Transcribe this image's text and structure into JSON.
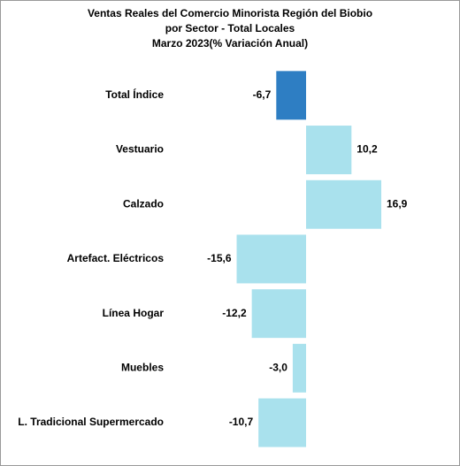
{
  "chart_data": {
    "type": "bar",
    "orientation": "horizontal",
    "title": [
      "Ventas Reales del Comercio Minorista  Región del Biobio",
      "por Sector - Total Locales",
      "Marzo 2023(% Variación Anual)"
    ],
    "categories": [
      "Total Índice",
      "Vestuario",
      "Calzado",
      "Artefact. Eléctricos",
      "Línea Hogar",
      "Muebles",
      "L. Tradicional Supermercado"
    ],
    "values": [
      -6.7,
      10.2,
      16.9,
      -15.6,
      -12.2,
      -3.0,
      -10.7
    ],
    "value_labels": [
      "-6,7",
      "10,2",
      "16,9",
      "-15,6",
      "-12,2",
      "-3,0",
      "-10,7"
    ],
    "colors": [
      "#2e7ec3",
      "#a9e1ed",
      "#a9e1ed",
      "#a9e1ed",
      "#a9e1ed",
      "#a9e1ed",
      "#a9e1ed"
    ]
  }
}
